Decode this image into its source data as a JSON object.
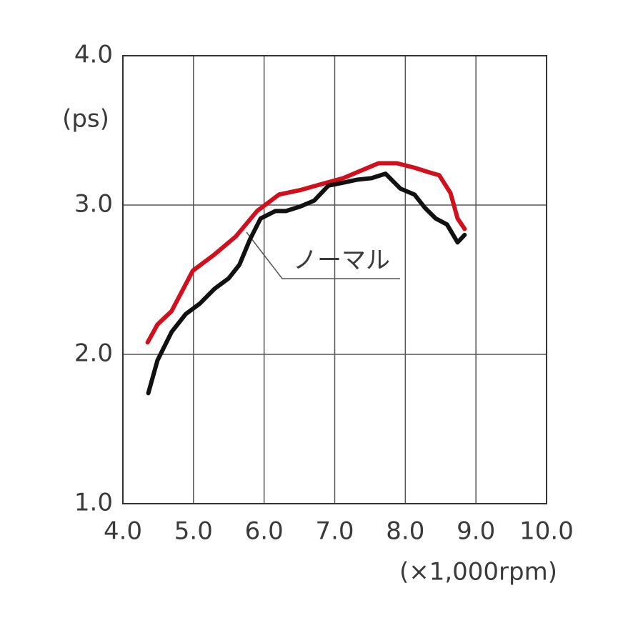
{
  "chart_data": {
    "type": "line",
    "y_label": "(ps)",
    "x_label": "(×1,000rpm)",
    "xlim": [
      4,
      10
    ],
    "ylim": [
      1,
      4
    ],
    "xticks": [
      {
        "value": 4,
        "label": "4.0"
      },
      {
        "value": 5,
        "label": "5.0"
      },
      {
        "value": 6,
        "label": "6.0"
      },
      {
        "value": 7,
        "label": "7.0"
      },
      {
        "value": 8,
        "label": "8.0"
      },
      {
        "value": 9,
        "label": "9.0"
      },
      {
        "value": 10,
        "label": "10.0"
      }
    ],
    "yticks": [
      {
        "value": 1,
        "label": "1.0"
      },
      {
        "value": 2,
        "label": "2.0"
      },
      {
        "value": 3,
        "label": "3.0"
      },
      {
        "value": 4,
        "label": "4.0"
      }
    ],
    "grid": true,
    "series": [
      {
        "color": "#d0101c",
        "x": [
          4.35,
          4.49,
          4.69,
          4.99,
          5.3,
          5.6,
          5.9,
          6.21,
          6.51,
          6.81,
          7.12,
          7.32,
          7.62,
          7.88,
          8.13,
          8.33,
          8.48,
          8.64,
          8.74,
          8.84
        ],
        "values": [
          2.08,
          2.2,
          2.29,
          2.56,
          2.67,
          2.79,
          2.96,
          3.07,
          3.1,
          3.14,
          3.18,
          3.22,
          3.28,
          3.28,
          3.25,
          3.22,
          3.2,
          3.08,
          2.91,
          2.84
        ]
      },
      {
        "name": "ノーマル",
        "color": "#111111",
        "x": [
          4.36,
          4.49,
          4.69,
          4.89,
          5.09,
          5.3,
          5.5,
          5.65,
          5.8,
          5.95,
          6.16,
          6.31,
          6.51,
          6.71,
          6.91,
          7.12,
          7.32,
          7.52,
          7.72,
          7.93,
          8.13,
          8.28,
          8.43,
          8.59,
          8.74,
          8.84
        ],
        "values": [
          1.74,
          1.96,
          2.15,
          2.27,
          2.34,
          2.44,
          2.51,
          2.6,
          2.77,
          2.91,
          2.96,
          2.96,
          2.99,
          3.03,
          3.13,
          3.15,
          3.17,
          3.18,
          3.21,
          3.11,
          3.07,
          2.98,
          2.91,
          2.87,
          2.75,
          2.8
        ]
      }
    ]
  }
}
